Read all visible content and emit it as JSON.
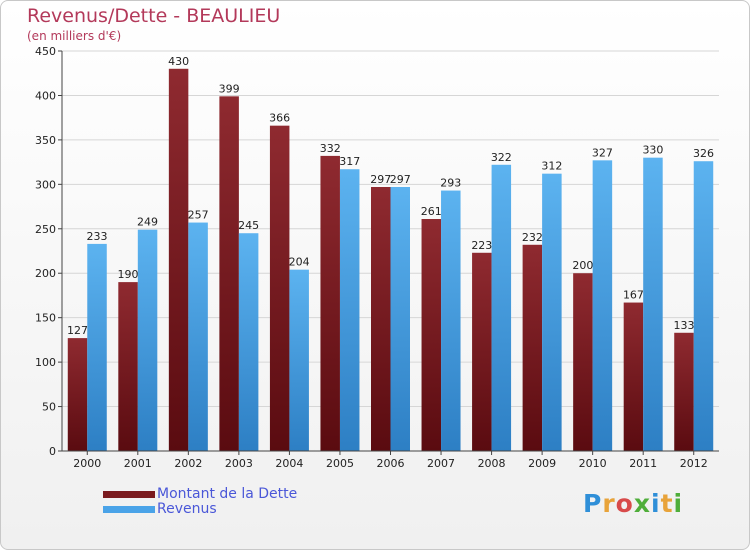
{
  "chart_data": {
    "type": "bar",
    "title": "Revenus/Dette - BEAULIEU",
    "subtitle": "(en milliers d'€)",
    "categories": [
      "2000",
      "2001",
      "2002",
      "2003",
      "2004",
      "2005",
      "2006",
      "2007",
      "2008",
      "2009",
      "2010",
      "2011",
      "2012"
    ],
    "series": [
      {
        "name": "Montant de la Dette",
        "color": "#7a1a1e",
        "values": [
          127,
          190,
          430,
          399,
          366,
          332,
          297,
          261,
          223,
          232,
          200,
          167,
          133
        ]
      },
      {
        "name": "Revenus",
        "color": "#4aa3e8",
        "values": [
          233,
          249,
          257,
          245,
          204,
          317,
          297,
          293,
          322,
          312,
          327,
          330,
          326
        ]
      }
    ],
    "ylim": [
      0,
      450
    ],
    "yticks": [
      0,
      50,
      100,
      150,
      200,
      250,
      300,
      350,
      400,
      450
    ],
    "grid": true,
    "legend_position": "bottom-left"
  },
  "logo": {
    "letters": [
      "P",
      "r",
      "o",
      "x",
      "i",
      "t",
      "i"
    ],
    "colors": [
      "#2f8fd8",
      "#e8a33a",
      "#d84a4a",
      "#4fae3a",
      "#2f8fd8",
      "#e8a33a",
      "#4fae3a"
    ]
  }
}
